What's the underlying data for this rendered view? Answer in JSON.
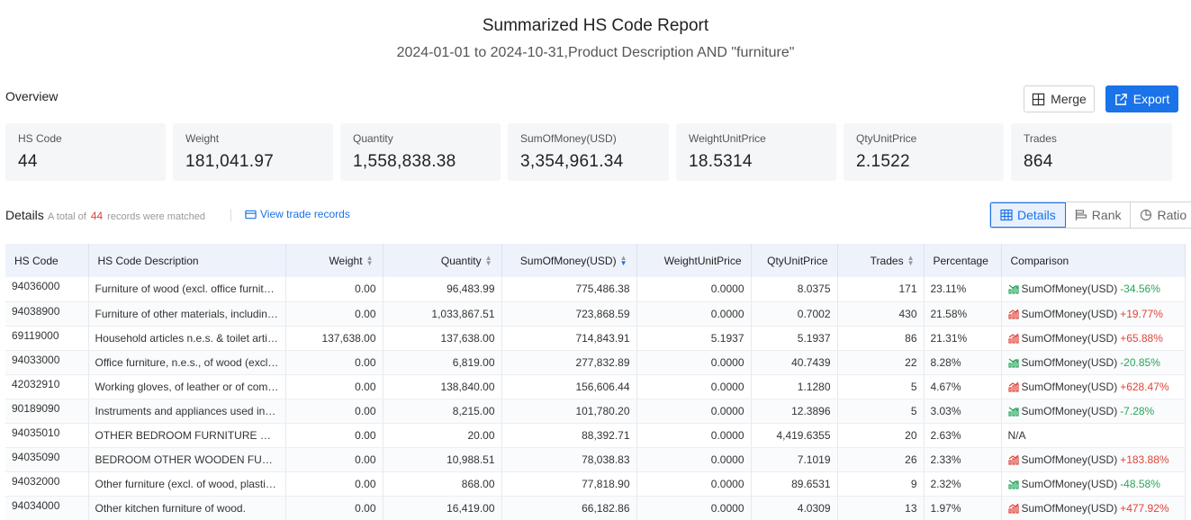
{
  "report": {
    "title": "Summarized HS Code Report",
    "subtitle": "2024-01-01 to 2024-10-31,Product Description AND \"furniture\""
  },
  "overview": {
    "label": "Overview",
    "merge_label": "Merge",
    "export_label": "Export",
    "stats": [
      {
        "label": "HS Code",
        "value": "44"
      },
      {
        "label": "Weight",
        "value": "181,041.97"
      },
      {
        "label": "Quantity",
        "value": "1,558,838.38"
      },
      {
        "label": "SumOfMoney(USD)",
        "value": "3,354,961.34"
      },
      {
        "label": "WeightUnitPrice",
        "value": "18.5314"
      },
      {
        "label": "QtyUnitPrice",
        "value": "2.1522"
      },
      {
        "label": "Trades",
        "value": "864"
      }
    ]
  },
  "details": {
    "label": "Details",
    "total_prefix": "A total of",
    "total_count": "44",
    "total_suffix": "records were matched",
    "view_link": "View trade records",
    "views": [
      "Details",
      "Rank",
      "Ratio"
    ]
  },
  "table": {
    "headers": [
      "HS Code",
      "HS Code Description",
      "Weight",
      "Quantity",
      "SumOfMoney(USD)",
      "WeightUnitPrice",
      "QtyUnitPrice",
      "Trades",
      "Percentage",
      "Comparison"
    ],
    "rows": [
      {
        "code": "94036000",
        "desc": "Furniture of wood (excl. office furniture, seats and medical furniture)",
        "weight": "0.00",
        "qty": "96,483.99",
        "money": "775,486.38",
        "wup": "0.0000",
        "qup": "8.0375",
        "trades": "171",
        "pct": "23.11%",
        "cmp_label": "SumOfMoney(USD)",
        "cmp_value": "-34.56%",
        "trend": "down"
      },
      {
        "code": "94038900",
        "desc": "Furniture of other materials, including cane, osier, bamboo",
        "weight": "0.00",
        "qty": "1,033,867.51",
        "money": "723,868.59",
        "wup": "0.0000",
        "qup": "0.7002",
        "trades": "430",
        "pct": "21.58%",
        "cmp_label": "SumOfMoney(USD)",
        "cmp_value": "+19.77%",
        "trend": "up"
      },
      {
        "code": "69119000",
        "desc": "Household articles n.e.s. & toilet articles, of porcelain",
        "weight": "137,638.00",
        "qty": "137,638.00",
        "money": "714,843.91",
        "wup": "5.1937",
        "qup": "5.1937",
        "trades": "86",
        "pct": "21.31%",
        "cmp_label": "SumOfMoney(USD)",
        "cmp_value": "+65.88%",
        "trend": "up"
      },
      {
        "code": "94033000",
        "desc": "Office furniture, n.e.s., of wood (excl. seats)",
        "weight": "0.00",
        "qty": "6,819.00",
        "money": "277,832.89",
        "wup": "0.0000",
        "qup": "40.7439",
        "trades": "22",
        "pct": "8.28%",
        "cmp_label": "SumOfMoney(USD)",
        "cmp_value": "-20.85%",
        "trend": "down"
      },
      {
        "code": "42032910",
        "desc": "Working gloves, of leather or of composition leather",
        "weight": "0.00",
        "qty": "138,840.00",
        "money": "156,606.44",
        "wup": "0.0000",
        "qup": "1.1280",
        "trades": "5",
        "pct": "4.67%",
        "cmp_label": "SumOfMoney(USD)",
        "cmp_value": "+628.47%",
        "trend": "up"
      },
      {
        "code": "90189090",
        "desc": "Instruments and appliances used in medical sciences",
        "weight": "0.00",
        "qty": "8,215.00",
        "money": "101,780.20",
        "wup": "0.0000",
        "qup": "12.3896",
        "trades": "5",
        "pct": "3.03%",
        "cmp_label": "SumOfMoney(USD)",
        "cmp_value": "-7.28%",
        "trend": "down"
      },
      {
        "code": "94035010",
        "desc": "OTHER BEDROOM FURNITURE OF ROSEWOOD",
        "weight": "0.00",
        "qty": "20.00",
        "money": "88,392.71",
        "wup": "0.0000",
        "qup": "4,419.6355",
        "trades": "20",
        "pct": "2.63%",
        "cmp_label": "N/A",
        "cmp_value": "",
        "trend": "none"
      },
      {
        "code": "94035090",
        "desc": "BEDROOM OTHER WOODEN FURNITURE",
        "weight": "0.00",
        "qty": "10,988.51",
        "money": "78,038.83",
        "wup": "0.0000",
        "qup": "7.1019",
        "trades": "26",
        "pct": "2.33%",
        "cmp_label": "SumOfMoney(USD)",
        "cmp_value": "+183.88%",
        "trend": "up"
      },
      {
        "code": "94032000",
        "desc": "Other furniture (excl. of wood, plastic, textile)",
        "weight": "0.00",
        "qty": "868.00",
        "money": "77,818.90",
        "wup": "0.0000",
        "qup": "89.6531",
        "trades": "9",
        "pct": "2.32%",
        "cmp_label": "SumOfMoney(USD)",
        "cmp_value": "-48.58%",
        "trend": "down"
      },
      {
        "code": "94034000",
        "desc": "Other kitchen furniture of wood.",
        "weight": "0.00",
        "qty": "16,419.00",
        "money": "66,182.86",
        "wup": "0.0000",
        "qup": "4.0309",
        "trades": "13",
        "pct": "1.97%",
        "cmp_label": "SumOfMoney(USD)",
        "cmp_value": "+477.92%",
        "trend": "up"
      }
    ]
  },
  "colors": {
    "accent": "#1a73e8",
    "up": "#e0443a",
    "down": "#27a55b"
  }
}
